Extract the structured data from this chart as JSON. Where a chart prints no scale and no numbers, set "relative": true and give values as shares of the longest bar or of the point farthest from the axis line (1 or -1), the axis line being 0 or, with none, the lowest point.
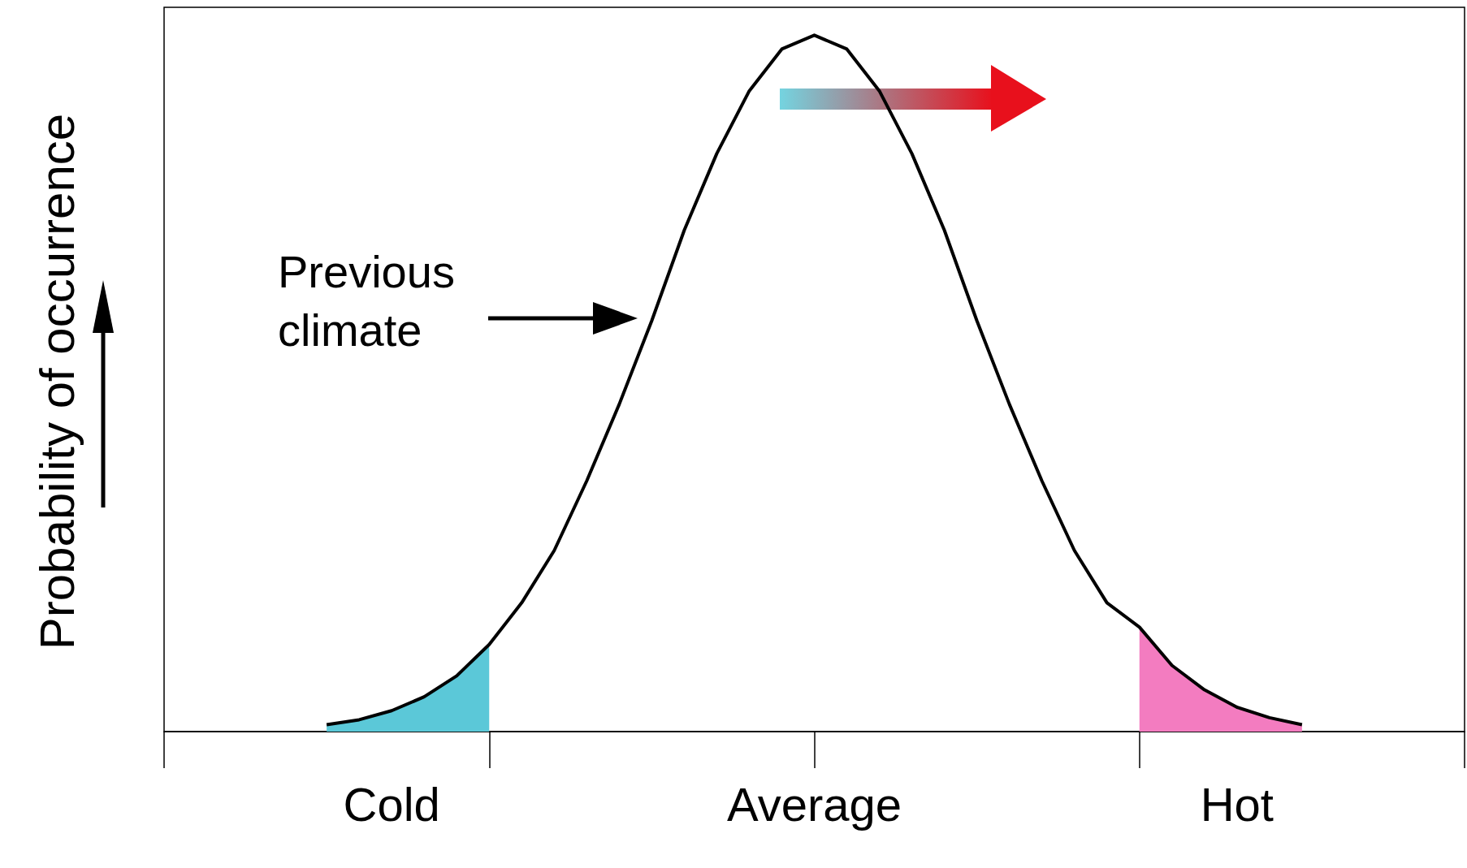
{
  "chart_data": {
    "type": "line",
    "relative": true,
    "ylabel": "Probability of occurrence",
    "annotations": [
      "Previous\nclimate"
    ],
    "categories": [
      null,
      null,
      null,
      null,
      null,
      null,
      null,
      "Cold",
      null,
      null,
      null,
      null,
      null,
      null,
      null,
      null,
      null,
      null,
      null,
      null,
      "Average",
      null,
      null,
      null,
      null,
      null,
      null,
      null,
      null,
      null,
      null,
      null,
      null,
      "Hot",
      null,
      null,
      null,
      null,
      null,
      null,
      null
    ],
    "series": [
      {
        "color": "#000000",
        "values": [
          null,
          null,
          null,
          null,
          null,
          0.01,
          0.017,
          0.03,
          0.05,
          0.08,
          0.125,
          0.185,
          0.26,
          0.36,
          0.47,
          0.59,
          0.72,
          0.83,
          0.92,
          0.98,
          1,
          0.98,
          0.92,
          0.83,
          0.72,
          0.59,
          0.47,
          0.36,
          0.26,
          0.185,
          0.15,
          0.095,
          0.06,
          0.035,
          0.02,
          0.01,
          null,
          null,
          null,
          null,
          null
        ]
      },
      {
        "type": "area",
        "color": "#5bc8d8",
        "values": [
          null,
          null,
          null,
          null,
          null,
          0.01,
          0.017,
          0.03,
          0.05,
          0.08,
          0.125,
          null,
          null,
          null,
          null,
          null,
          null,
          null,
          null,
          null,
          null,
          null,
          null,
          null,
          null,
          null,
          null,
          null,
          null,
          null,
          null,
          null,
          null,
          null,
          null,
          null,
          null,
          null,
          null,
          null,
          null
        ]
      },
      {
        "type": "area",
        "color": "#f37cc0",
        "values": [
          null,
          null,
          null,
          null,
          null,
          null,
          null,
          null,
          null,
          null,
          null,
          null,
          null,
          null,
          null,
          null,
          null,
          null,
          null,
          null,
          null,
          null,
          null,
          null,
          null,
          null,
          null,
          null,
          null,
          null,
          0.15,
          0.095,
          0.06,
          0.035,
          0.02,
          0.01,
          null,
          null,
          null,
          null,
          null
        ]
      }
    ],
    "grid": false,
    "marker": "none",
    "line_style": "solid"
  }
}
